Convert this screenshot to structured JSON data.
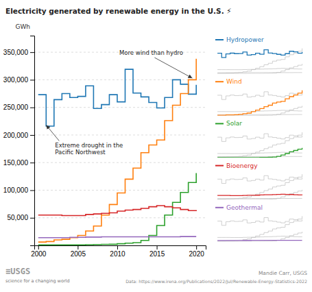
{
  "chart_data": {
    "type": "step",
    "title": "Electricity generated by renewable energy in the U.S. ⚡",
    "ylabel": "GWh",
    "x": [
      2000,
      2001,
      2002,
      2003,
      2004,
      2005,
      2006,
      2007,
      2008,
      2009,
      2010,
      2011,
      2012,
      2013,
      2014,
      2015,
      2016,
      2017,
      2018,
      2019,
      2020
    ],
    "series": [
      {
        "name": "Hydropower",
        "values": [
          273000,
          216000,
          264000,
          275000,
          268000,
          270000,
          289000,
          248000,
          255000,
          273000,
          260000,
          319000,
          276000,
          269000,
          259000,
          249000,
          268000,
          300000,
          292000,
          274000,
          291000
        ]
      },
      {
        "name": "Wind",
        "values": [
          6000,
          7000,
          10000,
          11000,
          14000,
          18000,
          26000,
          35000,
          55000,
          74000,
          95000,
          120000,
          140000,
          168000,
          182000,
          191000,
          226000,
          254000,
          275000,
          300000,
          338000
        ]
      },
      {
        "name": "Solar",
        "values": [
          800,
          800,
          800,
          800,
          800,
          900,
          1200,
          1500,
          1800,
          2000,
          3000,
          4000,
          5000,
          9000,
          18000,
          36000,
          55000,
          78000,
          96000,
          114000,
          131000
        ]
      },
      {
        "name": "Bioenergy",
        "values": [
          55000,
          55000,
          55000,
          54000,
          54000,
          54000,
          56000,
          57000,
          58000,
          59000,
          62000,
          64000,
          65000,
          67000,
          70000,
          72000,
          70000,
          68000,
          65000,
          63000,
          62000
        ]
      },
      {
        "name": "Geothermal",
        "values": [
          14000,
          14000,
          14000,
          14000,
          14500,
          14500,
          15000,
          15000,
          15500,
          15500,
          15500,
          15500,
          15500,
          15500,
          15500,
          15500,
          15500,
          15500,
          16000,
          16000,
          16000
        ]
      }
    ],
    "xlim": [
      1999.5,
      2021.2
    ],
    "xticks": [
      2000,
      2005,
      2010,
      2015,
      2020
    ],
    "ylim": [
      0,
      380000
    ],
    "yticks": [
      {
        "value": 50000,
        "label": "50,000"
      },
      {
        "value": 100000,
        "label": "100,000"
      },
      {
        "value": 150000,
        "label": "150,000"
      },
      {
        "value": 200000,
        "label": "200,000"
      },
      {
        "value": 250000,
        "label": "250,000"
      },
      {
        "value": 300000,
        "label": "300,000"
      },
      {
        "value": 350000,
        "label": "350,000"
      }
    ],
    "grid": true,
    "legend": "right",
    "annotations": [
      {
        "text": "More wind than hydro",
        "x": 2019.5,
        "y": 303000
      },
      {
        "text": "Extreme drought in the\nPacific Northwest",
        "x": 2001.0,
        "y": 218000
      }
    ],
    "footer_left": [
      "≡USGS",
      "science for a changing world"
    ],
    "footer_right": [
      "Mandie Carr, USGS",
      "Data: https://www.irena.org/Publications/2022/Jul/Renewable-Energy-Statistics-2022"
    ]
  }
}
